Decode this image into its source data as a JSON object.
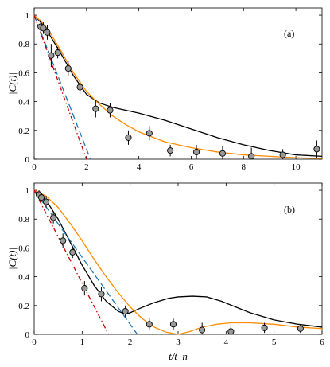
{
  "chart_data": [
    {
      "type": "line",
      "panel_label": "(a)",
      "ylabel": "|C(t)|",
      "xlabel": "",
      "xlim": [
        0,
        11
      ],
      "ylim": [
        0,
        1.05
      ],
      "xticks": [
        0,
        2,
        4,
        6,
        8,
        10
      ],
      "yticks": [
        0,
        0.2,
        0.4,
        0.6,
        0.8,
        1
      ],
      "series": [
        {
          "color": "#000000",
          "style": "solid",
          "x": [
            0,
            0.3,
            0.6,
            1.0,
            1.5,
            2.0,
            2.5,
            3.0,
            3.5,
            4.0,
            5.0,
            6.0,
            7.0,
            8.0,
            9.0,
            10.0,
            11.0
          ],
          "y": [
            1.0,
            0.94,
            0.86,
            0.74,
            0.58,
            0.45,
            0.39,
            0.36,
            0.34,
            0.32,
            0.27,
            0.21,
            0.15,
            0.1,
            0.06,
            0.03,
            0.02
          ]
        },
        {
          "color": "#ff8c00",
          "style": "solid",
          "x": [
            0,
            0.3,
            0.6,
            1.0,
            1.5,
            2.0,
            2.5,
            3.0,
            3.5,
            4.0,
            5.0,
            6.0,
            7.0,
            8.0,
            9.0,
            10.0,
            11.0
          ],
          "y": [
            1.0,
            0.95,
            0.88,
            0.76,
            0.6,
            0.47,
            0.38,
            0.3,
            0.24,
            0.19,
            0.12,
            0.08,
            0.05,
            0.03,
            0.02,
            0.01,
            0.005
          ]
        },
        {
          "color": "#1f77b4",
          "style": "dashed",
          "x": [
            0,
            2.15
          ],
          "y": [
            1.0,
            0.0
          ]
        },
        {
          "color": "#cc0000",
          "style": "dashdot",
          "x": [
            0,
            2.0
          ],
          "y": [
            1.0,
            0.0
          ]
        }
      ],
      "points": [
        {
          "x": 0.25,
          "y": 0.92,
          "err": 0.05
        },
        {
          "x": 0.35,
          "y": 0.91,
          "err": 0.04
        },
        {
          "x": 0.5,
          "y": 0.88,
          "err": 0.05
        },
        {
          "x": 0.65,
          "y": 0.72,
          "err": 0.08
        },
        {
          "x": 0.9,
          "y": 0.74,
          "err": 0.04
        },
        {
          "x": 1.3,
          "y": 0.63,
          "err": 0.05
        },
        {
          "x": 1.75,
          "y": 0.5,
          "err": 0.05
        },
        {
          "x": 2.35,
          "y": 0.35,
          "err": 0.06
        },
        {
          "x": 2.9,
          "y": 0.34,
          "err": 0.05
        },
        {
          "x": 3.6,
          "y": 0.15,
          "err": 0.05
        },
        {
          "x": 4.4,
          "y": 0.18,
          "err": 0.05
        },
        {
          "x": 5.2,
          "y": 0.06,
          "err": 0.04
        },
        {
          "x": 6.2,
          "y": 0.05,
          "err": 0.05
        },
        {
          "x": 7.2,
          "y": 0.04,
          "err": 0.05
        },
        {
          "x": 8.3,
          "y": 0.02,
          "err": 0.06
        },
        {
          "x": 9.5,
          "y": 0.03,
          "err": 0.04
        },
        {
          "x": 10.8,
          "y": 0.07,
          "err": 0.06
        }
      ]
    },
    {
      "type": "line",
      "panel_label": "(b)",
      "ylabel": "|C(t)|",
      "xlabel": "t/t_n",
      "xlim": [
        0,
        6
      ],
      "ylim": [
        0,
        1.05
      ],
      "xticks": [
        0,
        1,
        2,
        3,
        4,
        5,
        6
      ],
      "yticks": [
        0,
        0.2,
        0.4,
        0.6,
        0.8,
        1
      ],
      "series": [
        {
          "color": "#000000",
          "style": "solid",
          "x": [
            0,
            0.25,
            0.5,
            0.75,
            1.0,
            1.25,
            1.5,
            1.75,
            1.9,
            2.0,
            2.2,
            2.5,
            2.8,
            3.0,
            3.3,
            3.6,
            3.9,
            4.2,
            4.5,
            5.0,
            5.5,
            6.0
          ],
          "y": [
            1.0,
            0.93,
            0.8,
            0.64,
            0.48,
            0.34,
            0.23,
            0.16,
            0.14,
            0.15,
            0.18,
            0.22,
            0.25,
            0.26,
            0.265,
            0.26,
            0.23,
            0.19,
            0.15,
            0.1,
            0.07,
            0.05
          ]
        },
        {
          "color": "#ff8c00",
          "style": "solid",
          "x": [
            0,
            0.25,
            0.5,
            0.75,
            1.0,
            1.25,
            1.5,
            1.75,
            2.0,
            2.25,
            2.5,
            2.75,
            3.0,
            3.25,
            3.5,
            3.8,
            4.1,
            4.5,
            5.0,
            5.5,
            6.0
          ],
          "y": [
            1.0,
            0.96,
            0.88,
            0.77,
            0.65,
            0.52,
            0.4,
            0.29,
            0.19,
            0.11,
            0.05,
            0.015,
            0.0,
            0.02,
            0.05,
            0.07,
            0.08,
            0.08,
            0.07,
            0.05,
            0.04
          ]
        },
        {
          "color": "#1f77b4",
          "style": "dashed",
          "x": [
            0,
            2.15
          ],
          "y": [
            1.0,
            0.0
          ]
        },
        {
          "color": "#cc0000",
          "style": "dashdot",
          "x": [
            0,
            1.55
          ],
          "y": [
            1.0,
            0.0
          ]
        }
      ],
      "points": [
        {
          "x": 0.1,
          "y": 0.97,
          "err": 0.03
        },
        {
          "x": 0.15,
          "y": 0.95,
          "err": 0.03
        },
        {
          "x": 0.25,
          "y": 0.92,
          "err": 0.04
        },
        {
          "x": 0.4,
          "y": 0.81,
          "err": 0.04
        },
        {
          "x": 0.6,
          "y": 0.65,
          "err": 0.05
        },
        {
          "x": 0.8,
          "y": 0.57,
          "err": 0.04
        },
        {
          "x": 1.05,
          "y": 0.32,
          "err": 0.05
        },
        {
          "x": 1.4,
          "y": 0.28,
          "err": 0.05
        },
        {
          "x": 1.9,
          "y": 0.16,
          "err": 0.04
        },
        {
          "x": 2.4,
          "y": 0.07,
          "err": 0.04
        },
        {
          "x": 2.9,
          "y": 0.07,
          "err": 0.04
        },
        {
          "x": 3.5,
          "y": 0.03,
          "err": 0.05
        },
        {
          "x": 4.1,
          "y": 0.02,
          "err": 0.04
        },
        {
          "x": 4.8,
          "y": 0.045,
          "err": 0.035
        },
        {
          "x": 5.55,
          "y": 0.04,
          "err": 0.03
        }
      ]
    }
  ]
}
